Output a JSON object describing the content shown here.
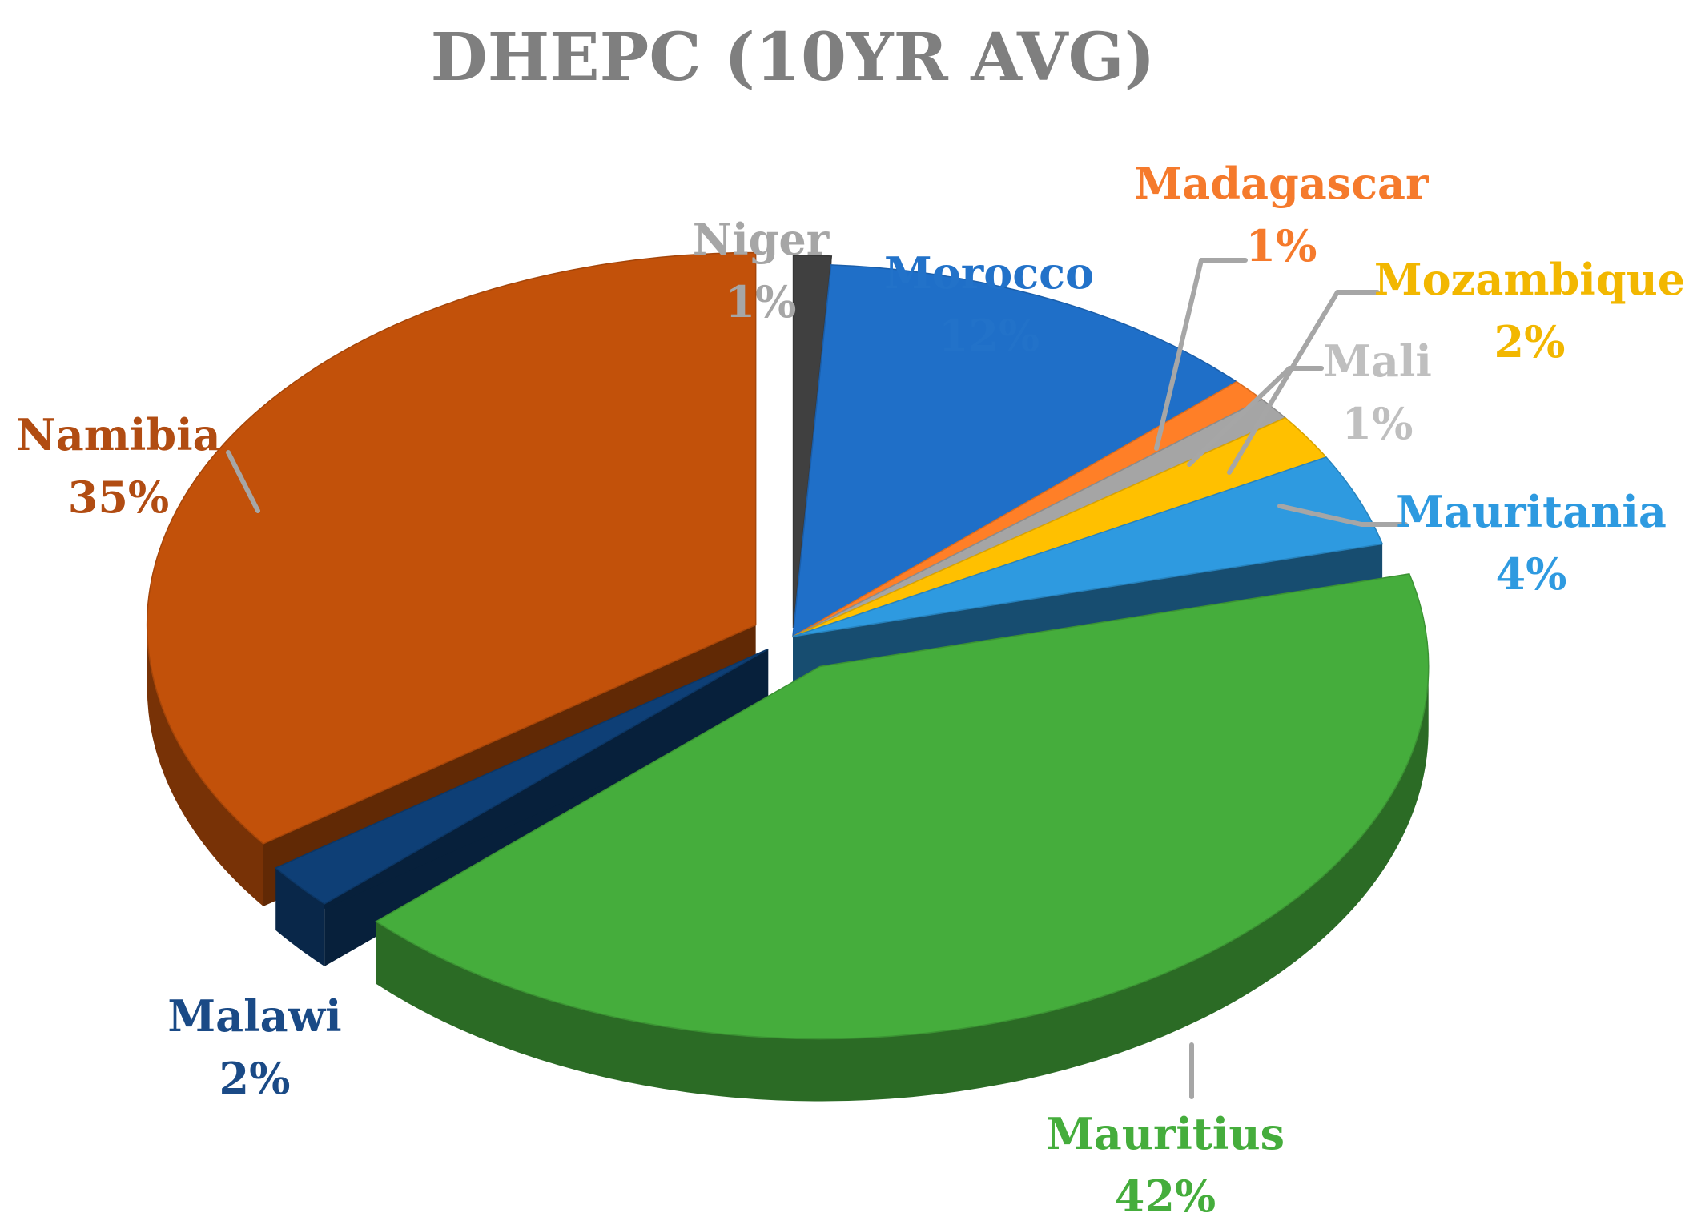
{
  "chart_data": {
    "type": "pie",
    "style": "3d-exploded",
    "title": "DHEPC (10YR AVG)",
    "slices": [
      {
        "label": "Niger",
        "percent_label": "1%",
        "value": 1,
        "color": "#404040",
        "label_color": "#a6a6a6"
      },
      {
        "label": "Morocco",
        "percent_label": "12%",
        "value": 12,
        "color": "#1f6fc8",
        "label_color": "#2272c9"
      },
      {
        "label": "Madagascar",
        "percent_label": "1%",
        "value": 1,
        "color": "#ff7f27",
        "label_color": "#f57a2c"
      },
      {
        "label": "Mali",
        "percent_label": "1%",
        "value": 1,
        "color": "#a5a5a5",
        "label_color": "#bfbfbf"
      },
      {
        "label": "Mozambique",
        "percent_label": "2%",
        "value": 2,
        "color": "#ffc000",
        "label_color": "#f2b700"
      },
      {
        "label": "Mauritania",
        "percent_label": "4%",
        "value": 4,
        "color": "#2e9ae0",
        "label_color": "#2e9ae0"
      },
      {
        "label": "Mauritius",
        "percent_label": "42%",
        "value": 42,
        "color": "#45ad3c",
        "label_color": "#45ad3c"
      },
      {
        "label": "Malawi",
        "percent_label": "2%",
        "value": 2,
        "color": "#0e3f76",
        "label_color": "#1a4a86"
      },
      {
        "label": "Namibia",
        "percent_label": "35%",
        "value": 35,
        "color": "#c2510a",
        "label_color": "#b14c12"
      }
    ],
    "legend": "none"
  }
}
